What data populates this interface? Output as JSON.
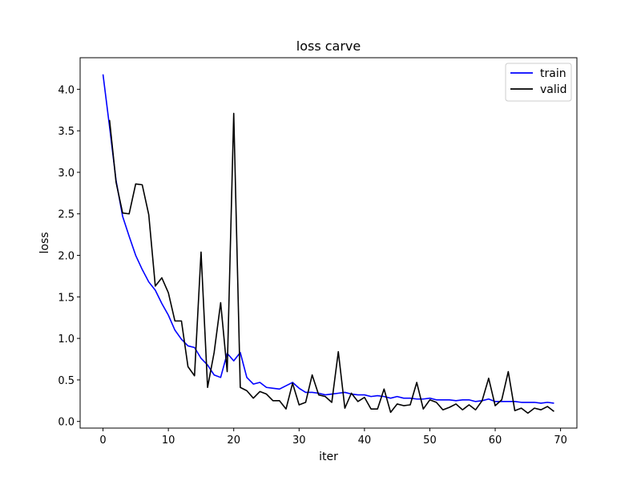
{
  "chart_data": {
    "type": "line",
    "title": "loss carve",
    "xlabel": "iter",
    "ylabel": "loss",
    "xlim": [
      -3.5,
      72.5
    ],
    "ylim": [
      -0.08,
      4.38
    ],
    "xticks": [
      0,
      10,
      20,
      30,
      40,
      50,
      60,
      70
    ],
    "yticks": [
      0.0,
      0.5,
      1.0,
      1.5,
      2.0,
      2.5,
      3.0,
      3.5,
      4.0
    ],
    "ytick_labels": [
      "0.0",
      "0.5",
      "1.0",
      "1.5",
      "2.0",
      "2.5",
      "3.0",
      "3.5",
      "4.0"
    ],
    "grid": false,
    "legend": "top-right",
    "series": [
      {
        "name": "train",
        "color": "#0000ff",
        "x": [
          0,
          1,
          2,
          3,
          4,
          5,
          6,
          7,
          8,
          9,
          10,
          11,
          12,
          13,
          14,
          15,
          16,
          17,
          18,
          19,
          20,
          21,
          22,
          23,
          24,
          25,
          26,
          27,
          28,
          29,
          30,
          31,
          32,
          33,
          34,
          35,
          36,
          37,
          38,
          39,
          40,
          41,
          42,
          43,
          44,
          45,
          46,
          47,
          48,
          49,
          50,
          51,
          52,
          53,
          54,
          55,
          56,
          57,
          58,
          59,
          60,
          61,
          62,
          63,
          64,
          65,
          66,
          67,
          68,
          69
        ],
        "values": [
          4.18,
          3.55,
          2.9,
          2.47,
          2.23,
          2.0,
          1.83,
          1.68,
          1.58,
          1.42,
          1.28,
          1.1,
          0.99,
          0.91,
          0.89,
          0.76,
          0.68,
          0.56,
          0.53,
          0.82,
          0.73,
          0.83,
          0.53,
          0.45,
          0.47,
          0.41,
          0.4,
          0.39,
          0.43,
          0.47,
          0.4,
          0.35,
          0.35,
          0.34,
          0.32,
          0.33,
          0.34,
          0.35,
          0.33,
          0.32,
          0.32,
          0.3,
          0.31,
          0.3,
          0.28,
          0.3,
          0.28,
          0.28,
          0.27,
          0.27,
          0.28,
          0.26,
          0.26,
          0.26,
          0.25,
          0.26,
          0.26,
          0.24,
          0.25,
          0.27,
          0.24,
          0.24,
          0.24,
          0.24,
          0.23,
          0.23,
          0.23,
          0.22,
          0.23,
          0.22
        ]
      },
      {
        "name": "valid",
        "color": "#000000",
        "x": [
          1,
          2,
          3,
          4,
          5,
          6,
          7,
          8,
          9,
          10,
          11,
          12,
          13,
          14,
          15,
          16,
          17,
          18,
          19,
          20,
          21,
          22,
          23,
          24,
          25,
          26,
          27,
          28,
          29,
          30,
          31,
          32,
          33,
          34,
          35,
          36,
          37,
          38,
          39,
          40,
          41,
          42,
          43,
          44,
          45,
          46,
          47,
          48,
          49,
          50,
          51,
          52,
          53,
          54,
          55,
          56,
          57,
          58,
          59,
          60,
          61,
          62,
          63,
          64,
          65,
          66,
          67,
          68,
          69
        ],
        "values": [
          3.63,
          2.88,
          2.51,
          2.5,
          2.86,
          2.85,
          2.49,
          1.63,
          1.73,
          1.55,
          1.21,
          1.21,
          0.66,
          0.55,
          2.04,
          0.41,
          0.83,
          1.43,
          0.6,
          3.71,
          0.41,
          0.37,
          0.28,
          0.36,
          0.33,
          0.25,
          0.25,
          0.15,
          0.46,
          0.2,
          0.23,
          0.56,
          0.32,
          0.3,
          0.23,
          0.84,
          0.16,
          0.34,
          0.24,
          0.29,
          0.15,
          0.15,
          0.39,
          0.11,
          0.21,
          0.19,
          0.2,
          0.47,
          0.15,
          0.26,
          0.23,
          0.14,
          0.17,
          0.21,
          0.14,
          0.2,
          0.14,
          0.25,
          0.52,
          0.19,
          0.26,
          0.6,
          0.13,
          0.16,
          0.1,
          0.16,
          0.14,
          0.18,
          0.12
        ]
      }
    ]
  }
}
